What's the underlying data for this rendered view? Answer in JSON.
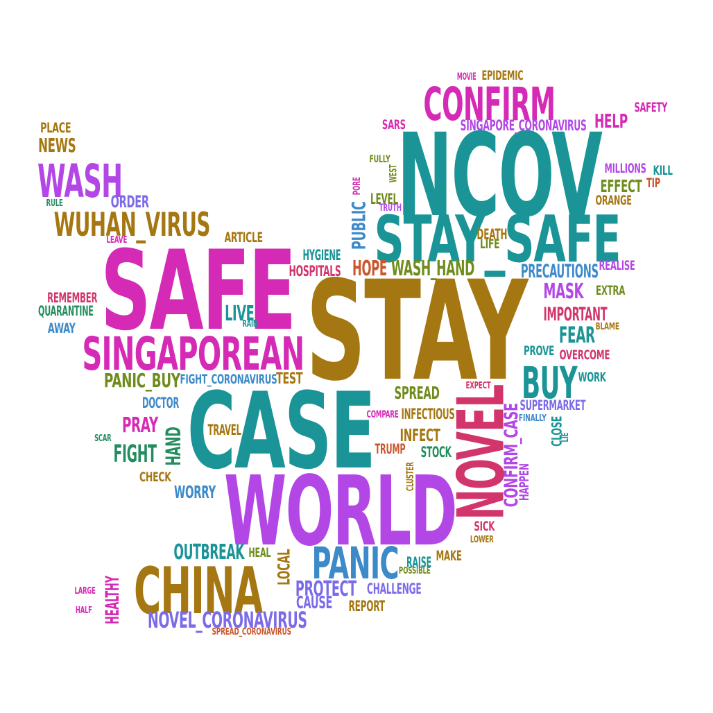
{
  "palette": {
    "teal": "#1a9496",
    "gold": "#a57712",
    "magenta": "#d52ab5",
    "purple": "#b347e6",
    "crimson": "#d1356b",
    "olive": "#6f8c1d",
    "blue": "#3d8ac9",
    "green": "#238d5f",
    "periwinkle": "#7b6be8",
    "orange": "#c9572e"
  },
  "words": [
    {
      "text": "STAY",
      "color": "gold"
    },
    {
      "text": "SAFE",
      "color": "magenta"
    },
    {
      "text": "NCOV",
      "color": "teal"
    },
    {
      "text": "CASE",
      "color": "teal"
    },
    {
      "text": "WORLD",
      "color": "purple"
    },
    {
      "text": "STAY_SAFE",
      "color": "teal"
    },
    {
      "text": "NOVEL",
      "color": "crimson"
    },
    {
      "text": "CHINA",
      "color": "gold"
    },
    {
      "text": "SINGAPOREAN",
      "color": "magenta"
    },
    {
      "text": "CONFIRM",
      "color": "magenta"
    },
    {
      "text": "WASH",
      "color": "purple"
    },
    {
      "text": "WUHAN_VIRUS",
      "color": "gold"
    },
    {
      "text": "PANIC",
      "color": "blue"
    },
    {
      "text": "BUY",
      "color": "teal"
    },
    {
      "text": "NOVEL_CORONAVIRUS",
      "color": "periwinkle"
    },
    {
      "text": "CONFIRM_CASE",
      "color": "purple"
    },
    {
      "text": "WASH_HAND",
      "color": "olive"
    },
    {
      "text": "PUBLIC",
      "color": "blue"
    },
    {
      "text": "HOPE",
      "color": "orange"
    },
    {
      "text": "PRECAUTIONS",
      "color": "blue"
    },
    {
      "text": "FEAR",
      "color": "teal"
    },
    {
      "text": "MASK",
      "color": "purple"
    },
    {
      "text": "IMPORTANT",
      "color": "crimson"
    },
    {
      "text": "FIGHT",
      "color": "green"
    },
    {
      "text": "HAND",
      "color": "green"
    },
    {
      "text": "PRAY",
      "color": "magenta"
    },
    {
      "text": "OUTBREAK",
      "color": "teal"
    },
    {
      "text": "PROTECT",
      "color": "periwinkle"
    },
    {
      "text": "HEALTHY",
      "color": "magenta"
    },
    {
      "text": "PANIC_BUY",
      "color": "olive"
    },
    {
      "text": "LIVE",
      "color": "teal"
    },
    {
      "text": "NEWS",
      "color": "gold"
    },
    {
      "text": "HELP",
      "color": "magenta"
    },
    {
      "text": "EFFECT",
      "color": "olive"
    },
    {
      "text": "SPREAD",
      "color": "olive"
    },
    {
      "text": "INFECT",
      "color": "gold"
    },
    {
      "text": "CAUSE",
      "color": "periwinkle"
    },
    {
      "text": "WORRY",
      "color": "blue"
    },
    {
      "text": "ORDER",
      "color": "periwinkle"
    },
    {
      "text": "LOCAL",
      "color": "gold"
    },
    {
      "text": "HYGIENE",
      "color": "teal"
    },
    {
      "text": "HOSPITALS",
      "color": "crimson"
    },
    {
      "text": "TEST",
      "color": "gold"
    },
    {
      "text": "INFECTIOUS",
      "color": "gold"
    },
    {
      "text": "SINGAPORE_CORONAVIRUS",
      "color": "purple"
    },
    {
      "text": "DEATH",
      "color": "gold"
    },
    {
      "text": "LIFE",
      "color": "olive"
    },
    {
      "text": "DOCTOR",
      "color": "blue"
    },
    {
      "text": "TRAVEL",
      "color": "gold"
    },
    {
      "text": "LEVEL",
      "color": "olive"
    },
    {
      "text": "STOCK",
      "color": "green"
    },
    {
      "text": "SUPERMARKET",
      "color": "periwinkle"
    },
    {
      "text": "CHALLENGE",
      "color": "periwinkle"
    },
    {
      "text": "REPORT",
      "color": "gold"
    },
    {
      "text": "RAISE",
      "color": "teal"
    },
    {
      "text": "MAKE",
      "color": "gold"
    },
    {
      "text": "SICK",
      "color": "crimson"
    },
    {
      "text": "TRUMP",
      "color": "orange"
    },
    {
      "text": "REMEMBER",
      "color": "crimson"
    },
    {
      "text": "QUARANTINE",
      "color": "green"
    },
    {
      "text": "AWAY",
      "color": "blue"
    },
    {
      "text": "ARTICLE",
      "color": "gold"
    },
    {
      "text": "PLACE",
      "color": "gold"
    },
    {
      "text": "MILLIONS",
      "color": "purple"
    },
    {
      "text": "KILL",
      "color": "teal"
    },
    {
      "text": "TIP",
      "color": "orange"
    },
    {
      "text": "ORANGE",
      "color": "gold"
    },
    {
      "text": "REALISE",
      "color": "purple"
    },
    {
      "text": "EXTRA",
      "color": "olive"
    },
    {
      "text": "SAFETY",
      "color": "magenta"
    },
    {
      "text": "EPIDEMIC",
      "color": "gold"
    },
    {
      "text": "MOVIE",
      "color": "magenta"
    },
    {
      "text": "SARS",
      "color": "magenta"
    },
    {
      "text": "OVERCOME",
      "color": "crimson"
    },
    {
      "text": "PROVE",
      "color": "teal"
    },
    {
      "text": "WORK",
      "color": "teal"
    },
    {
      "text": "CHECK",
      "color": "gold"
    },
    {
      "text": "HEAL",
      "color": "olive"
    },
    {
      "text": "HAPPEN",
      "color": "purple"
    },
    {
      "text": "CLOSE",
      "color": "teal"
    },
    {
      "text": "FIGHT_CORONAVIRUS",
      "color": "blue"
    },
    {
      "text": "FULLY",
      "color": "olive"
    },
    {
      "text": "WEST",
      "color": "olive"
    },
    {
      "text": "PORE",
      "color": "magenta"
    },
    {
      "text": "TRUTH",
      "color": "purple"
    },
    {
      "text": "RULE",
      "color": "green"
    },
    {
      "text": "LEAVE",
      "color": "magenta"
    },
    {
      "text": "RAIN",
      "color": "teal"
    },
    {
      "text": "BLAME",
      "color": "gold"
    },
    {
      "text": "EXPECT",
      "color": "crimson"
    },
    {
      "text": "COMPARE",
      "color": "magenta"
    },
    {
      "text": "FINALLY",
      "color": "blue"
    },
    {
      "text": "LIE",
      "color": "teal"
    },
    {
      "text": "CLUSTER",
      "color": "gold"
    },
    {
      "text": "LOWER",
      "color": "gold"
    },
    {
      "text": "POSSIBLE",
      "color": "olive"
    },
    {
      "text": "SCAR",
      "color": "green"
    },
    {
      "text": "LARGE",
      "color": "magenta"
    },
    {
      "text": "HALF",
      "color": "magenta"
    },
    {
      "text": "SPREAD_CORONAVIRUS",
      "color": "orange"
    }
  ]
}
